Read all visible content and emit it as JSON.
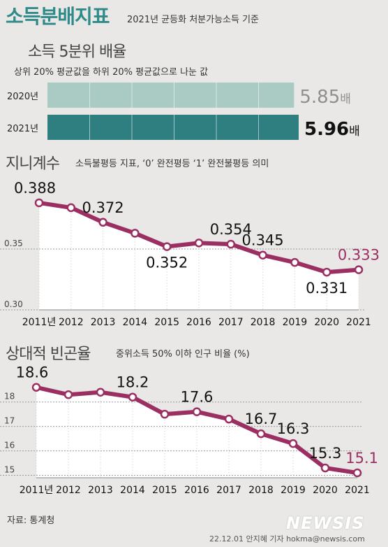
{
  "header": {
    "title": "소득분배지표",
    "subtitle": "2021년 균등화 처분가능소득 기준"
  },
  "ratio_section": {
    "title": "소득 5분위 배율",
    "subtitle": "상위 20% 평균값을 하위 20% 평균값으로 나눈 값"
  },
  "gini_section": {
    "title": "지니계수",
    "subtitle": "소득불평등 지표, ‘0’ 완전평등 ‘1’ 완전불평등 의미"
  },
  "poverty_section": {
    "title": "상대적 빈곤율",
    "subtitle": "중위소득 50% 이하 인구 비율 (%)"
  },
  "footer": {
    "source": "자료: 통계청",
    "credit": "22.12.01 안지혜 기자 hokma@newsis.com",
    "watermark": "NEWSIS"
  },
  "colors": {
    "title_teal": "#2f8a8a",
    "bar_light": "#a9cbc3",
    "bar_dark": "#2f7f80",
    "line": "#9b2f62",
    "highlight_text": "#9b2f62"
  },
  "chart_data": [
    {
      "type": "bar",
      "orientation": "horizontal",
      "categories": [
        "2020년",
        "2021년"
      ],
      "values": [
        5.85,
        5.96
      ],
      "value_labels": [
        "5.85",
        "5.96"
      ],
      "unit": "배",
      "xlim": [
        0,
        5.96
      ]
    },
    {
      "type": "line",
      "x": [
        "2011년",
        "2012",
        "2013",
        "2014",
        "2015",
        "2016",
        "2017",
        "2018",
        "2019",
        "2020",
        "2021"
      ],
      "y": [
        0.388,
        0.384,
        0.372,
        0.363,
        0.352,
        0.355,
        0.354,
        0.345,
        0.339,
        0.331,
        0.333
      ],
      "labels": [
        {
          "index": 0,
          "text": "0.388",
          "pos": "above"
        },
        {
          "index": 2,
          "text": "0.372",
          "pos": "above"
        },
        {
          "index": 4,
          "text": "0.352",
          "pos": "below"
        },
        {
          "index": 6,
          "text": "0.354",
          "pos": "above"
        },
        {
          "index": 7,
          "text": "0.345",
          "pos": "above"
        },
        {
          "index": 9,
          "text": "0.331",
          "pos": "below"
        },
        {
          "index": 10,
          "text": "0.333",
          "pos": "above",
          "highlight": true
        }
      ],
      "yticks": [
        {
          "value": 0.35,
          "label": "0.35"
        },
        {
          "value": 0.3,
          "label": "0.30"
        }
      ],
      "ylim": [
        0.3,
        0.392
      ],
      "grid": true
    },
    {
      "type": "line",
      "x": [
        "2011년",
        "2012",
        "2013",
        "2014",
        "2015",
        "2016",
        "2017",
        "2018",
        "2019",
        "2020",
        "2021"
      ],
      "y": [
        18.6,
        18.3,
        18.4,
        18.2,
        17.5,
        17.6,
        17.3,
        16.7,
        16.3,
        15.3,
        15.1
      ],
      "labels": [
        {
          "index": 0,
          "text": "18.6",
          "pos": "above"
        },
        {
          "index": 3,
          "text": "18.2",
          "pos": "above"
        },
        {
          "index": 5,
          "text": "17.6",
          "pos": "above"
        },
        {
          "index": 7,
          "text": "16.7",
          "pos": "above"
        },
        {
          "index": 8,
          "text": "16.3",
          "pos": "above"
        },
        {
          "index": 9,
          "text": "15.3",
          "pos": "above"
        },
        {
          "index": 10,
          "text": "15.1",
          "pos": "above",
          "highlight": true
        }
      ],
      "yticks": [
        {
          "value": 18,
          "label": "18"
        },
        {
          "value": 17,
          "label": "17"
        },
        {
          "value": 16,
          "label": "16"
        },
        {
          "value": 15,
          "label": "15"
        }
      ],
      "ylim": [
        14.9,
        18.65
      ],
      "grid": true
    }
  ]
}
